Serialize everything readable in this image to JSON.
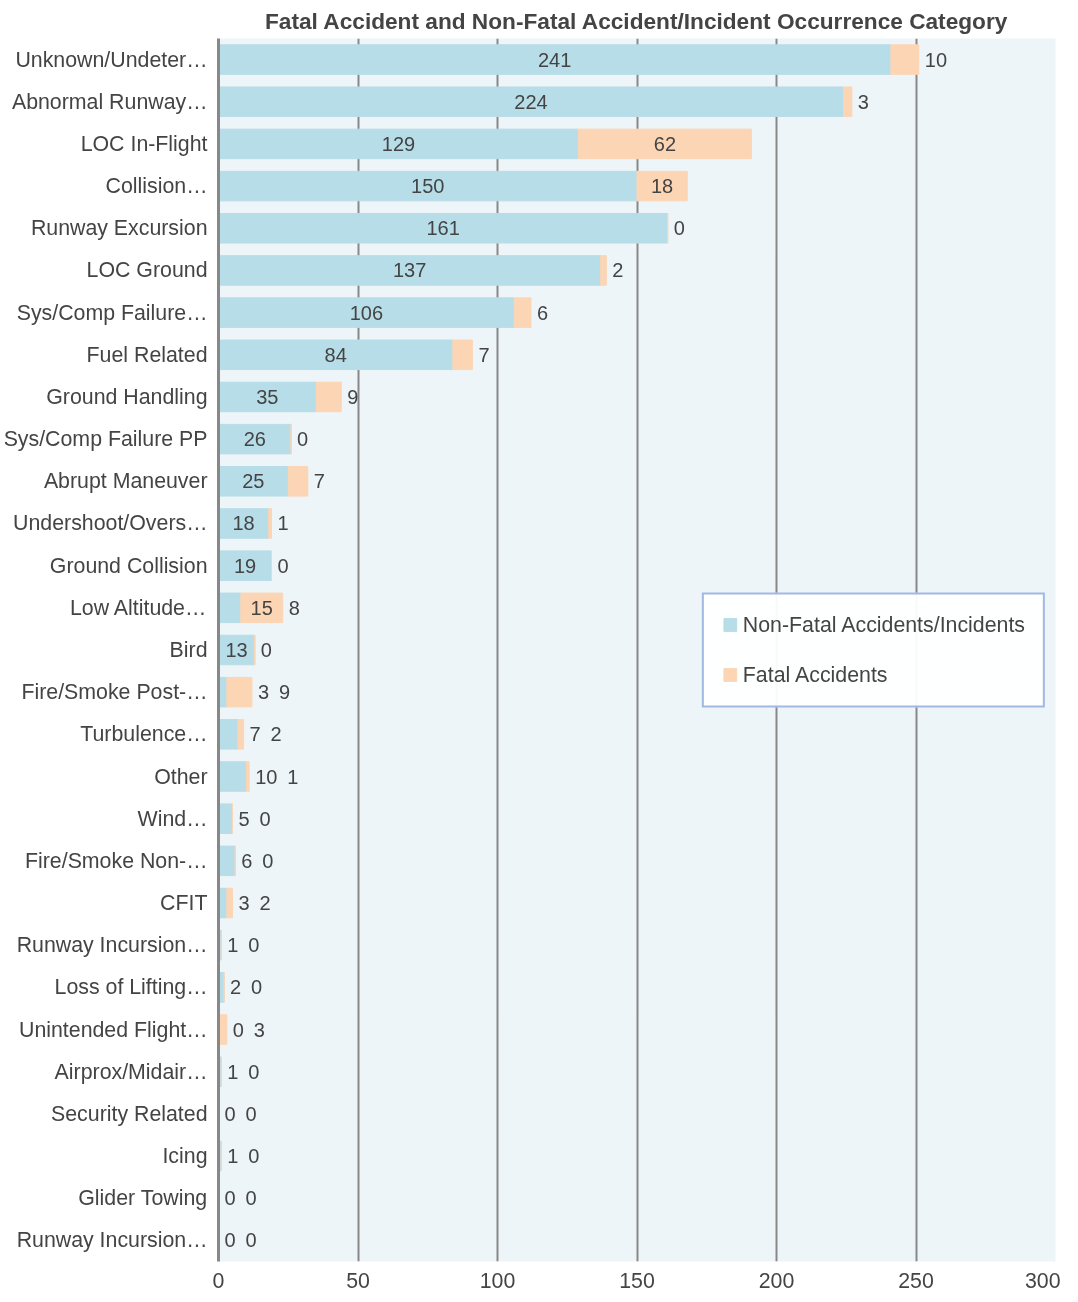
{
  "chart_data": {
    "type": "bar",
    "orientation": "horizontal",
    "stacked": true,
    "title": "Fatal Accident and Non-Fatal Accident/Incident Occurrence Category",
    "categories": [
      "Unknown/Undeter…",
      "Abnormal Runway…",
      "LOC In-Flight",
      "Collision…",
      "Runway Excursion",
      "LOC Ground",
      "Sys/Comp Failure…",
      "Fuel Related",
      "Ground Handling",
      "Sys/Comp Failure PP",
      "Abrupt Maneuver",
      "Undershoot/Overs…",
      "Ground Collision",
      "Low Altitude…",
      "Bird",
      "Fire/Smoke Post-…",
      "Turbulence…",
      "Other",
      "Wind…",
      "Fire/Smoke Non-…",
      "CFIT",
      "Runway Incursion…",
      "Loss of Lifting…",
      "Unintended Flight…",
      "Airprox/Midair…",
      "Security Related",
      "Icing",
      "Glider Towing",
      "Runway Incursion…"
    ],
    "series": [
      {
        "name": "Non-Fatal Accidents/Incidents",
        "color": "#b7dde8",
        "values": [
          241,
          224,
          129,
          150,
          161,
          137,
          106,
          84,
          35,
          26,
          25,
          18,
          19,
          8,
          13,
          3,
          7,
          10,
          5,
          6,
          3,
          1,
          2,
          0,
          1,
          0,
          1,
          0,
          0
        ]
      },
      {
        "name": "Fatal Accidents",
        "color": "#fcd5b5",
        "values": [
          10,
          3,
          62,
          18,
          0,
          2,
          6,
          7,
          9,
          0,
          7,
          1,
          0,
          15,
          0,
          9,
          2,
          1,
          0,
          0,
          2,
          0,
          0,
          3,
          0,
          0,
          0,
          0,
          0
        ]
      }
    ],
    "xlim": [
      0,
      300
    ],
    "xticks": [
      0,
      50,
      100,
      150,
      200,
      250,
      300
    ],
    "grid": "x",
    "legend": "right",
    "data_labels": true
  }
}
